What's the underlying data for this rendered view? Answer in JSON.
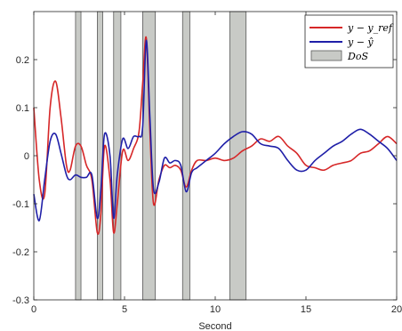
{
  "chart_data": {
    "type": "line",
    "xlabel": "Second",
    "ylabel": "",
    "xlim": [
      0,
      20
    ],
    "ylim": [
      -0.3,
      0.3
    ],
    "x_ticks": [
      0,
      5,
      10,
      15,
      20
    ],
    "y_ticks": [
      -0.3,
      -0.2,
      -0.1,
      0,
      0.1,
      0.2
    ],
    "y_tick_labels": [
      "-0.3",
      "-0.2",
      "-0.1",
      "0",
      "0.1",
      "0.2"
    ],
    "grid": false,
    "legend_position": "top-right",
    "legend": [
      "y − y_ref",
      "y − ŷ",
      "DoS"
    ],
    "dos_intervals": [
      [
        2.3,
        2.6
      ],
      [
        3.5,
        3.8
      ],
      [
        4.4,
        4.8
      ],
      [
        6.0,
        6.7
      ],
      [
        8.2,
        8.6
      ],
      [
        10.8,
        11.7
      ]
    ],
    "series": [
      {
        "color": "#d62728",
        "x": [
          0,
          0.3,
          0.6,
          0.9,
          1.2,
          1.5,
          1.8,
          2.0,
          2.3,
          2.6,
          2.9,
          3.2,
          3.5,
          3.7,
          3.9,
          4.2,
          4.4,
          4.6,
          4.9,
          5.2,
          5.5,
          5.8,
          6.0,
          6.2,
          6.4,
          6.6,
          6.9,
          7.2,
          7.5,
          7.8,
          8.1,
          8.4,
          8.7,
          9.0,
          9.5,
          10,
          10.5,
          11,
          11.5,
          12,
          12.5,
          13,
          13.5,
          14,
          14.5,
          15,
          15.5,
          16,
          16.5,
          17,
          17.5,
          18,
          18.5,
          19,
          19.5,
          20
        ],
        "y": [
          0.1,
          -0.05,
          -0.08,
          0.1,
          0.155,
          0.08,
          -0.02,
          -0.03,
          0.02,
          0.02,
          -0.02,
          -0.05,
          -0.16,
          -0.12,
          0.02,
          -0.05,
          -0.16,
          -0.1,
          0.01,
          -0.01,
          0.015,
          0.05,
          0.15,
          0.245,
          0.05,
          -0.1,
          -0.05,
          -0.02,
          -0.025,
          -0.02,
          -0.03,
          -0.065,
          -0.03,
          -0.01,
          -0.01,
          -0.005,
          -0.01,
          -0.005,
          0.01,
          0.02,
          0.035,
          0.03,
          0.04,
          0.02,
          0.005,
          -0.02,
          -0.025,
          -0.03,
          -0.02,
          -0.015,
          -0.01,
          0.005,
          0.01,
          0.025,
          0.04,
          0.025
        ]
      },
      {
        "color": "#1f1fa8",
        "x": [
          0,
          0.3,
          0.6,
          0.9,
          1.2,
          1.5,
          1.8,
          2.0,
          2.3,
          2.6,
          2.9,
          3.2,
          3.5,
          3.7,
          3.9,
          4.2,
          4.4,
          4.6,
          4.9,
          5.2,
          5.5,
          5.8,
          6.0,
          6.2,
          6.4,
          6.6,
          6.9,
          7.2,
          7.5,
          7.8,
          8.1,
          8.4,
          8.7,
          9.0,
          9.5,
          10,
          10.5,
          11,
          11.5,
          12,
          12.5,
          13,
          13.5,
          14,
          14.5,
          15,
          15.5,
          16,
          16.5,
          17,
          17.5,
          18,
          18.5,
          19,
          19.5,
          20
        ],
        "y": [
          -0.08,
          -0.135,
          -0.05,
          0.03,
          0.045,
          0.005,
          -0.04,
          -0.05,
          -0.04,
          -0.045,
          -0.045,
          -0.04,
          -0.13,
          -0.07,
          0.045,
          0.0,
          -0.13,
          -0.04,
          0.035,
          0.015,
          0.04,
          0.04,
          0.06,
          0.24,
          0.08,
          -0.07,
          -0.055,
          -0.005,
          -0.015,
          -0.01,
          -0.02,
          -0.075,
          -0.035,
          -0.025,
          -0.01,
          0.005,
          0.025,
          0.04,
          0.05,
          0.045,
          0.025,
          0.02,
          0.015,
          -0.01,
          -0.03,
          -0.03,
          -0.01,
          0.005,
          0.02,
          0.03,
          0.045,
          0.055,
          0.045,
          0.03,
          0.015,
          -0.01
        ]
      }
    ]
  }
}
